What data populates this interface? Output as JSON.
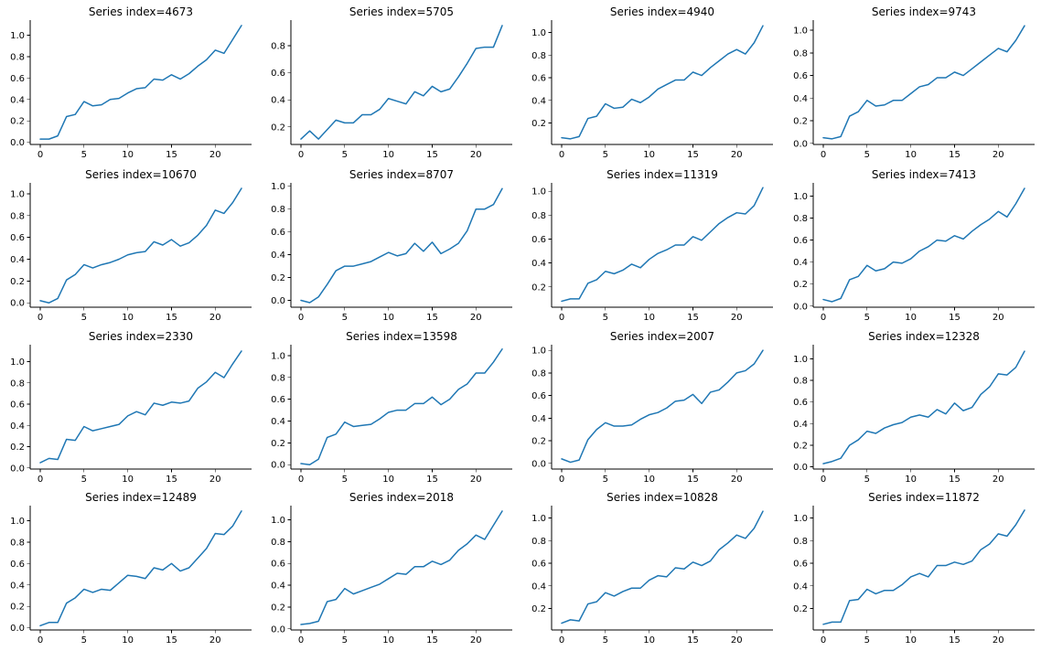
{
  "colors": {
    "line": "#1f77b4",
    "axis": "#000000",
    "background": "#ffffff"
  },
  "chart_data": [
    {
      "type": "line",
      "title": "Series index=4673",
      "xticks": [
        0,
        5,
        10,
        15,
        20
      ],
      "yticks": [
        "0.0",
        "0.2",
        "0.4",
        "0.6",
        "0.8",
        "1.0"
      ],
      "xlim": [
        -1.15,
        24.15
      ],
      "ylim": [
        -0.02,
        1.14
      ],
      "spines": [
        "left",
        "bottom"
      ],
      "x": [
        0,
        1,
        2,
        3,
        4,
        5,
        6,
        7,
        8,
        9,
        10,
        11,
        12,
        13,
        14,
        15,
        16,
        17,
        18,
        19,
        20,
        21,
        22,
        23
      ],
      "series": [
        {
          "values": [
            0.03,
            0.03,
            0.06,
            0.24,
            0.26,
            0.38,
            0.34,
            0.35,
            0.4,
            0.41,
            0.46,
            0.5,
            0.51,
            0.59,
            0.58,
            0.63,
            0.59,
            0.64,
            0.71,
            0.77,
            0.86,
            0.83,
            0.96,
            1.09
          ]
        }
      ]
    },
    {
      "type": "line",
      "title": "Series index=5705",
      "xticks": [
        0,
        5,
        10,
        15,
        20
      ],
      "yticks": [
        "0.2",
        "0.4",
        "0.6",
        "0.8"
      ],
      "xlim": [
        -1.15,
        24.15
      ],
      "ylim": [
        0.07,
        0.99
      ],
      "spines": [
        "left",
        "bottom"
      ],
      "x": [
        0,
        1,
        2,
        3,
        4,
        5,
        6,
        7,
        8,
        9,
        10,
        11,
        12,
        13,
        14,
        15,
        16,
        17,
        18,
        19,
        20,
        21,
        22,
        23
      ],
      "series": [
        {
          "values": [
            0.11,
            0.17,
            0.11,
            0.18,
            0.25,
            0.23,
            0.23,
            0.29,
            0.29,
            0.33,
            0.41,
            0.39,
            0.37,
            0.46,
            0.43,
            0.5,
            0.46,
            0.48,
            0.57,
            0.67,
            0.78,
            0.79,
            0.79,
            0.95
          ]
        }
      ]
    },
    {
      "type": "line",
      "title": "Series index=4940",
      "xticks": [
        0,
        5,
        10,
        15,
        20
      ],
      "yticks": [
        "0.2",
        "0.4",
        "0.6",
        "0.8",
        "1.0"
      ],
      "xlim": [
        -1.15,
        24.15
      ],
      "ylim": [
        0.01,
        1.11
      ],
      "spines": [
        "left",
        "bottom"
      ],
      "x": [
        0,
        1,
        2,
        3,
        4,
        5,
        6,
        7,
        8,
        9,
        10,
        11,
        12,
        13,
        14,
        15,
        16,
        17,
        18,
        19,
        20,
        21,
        22,
        23
      ],
      "series": [
        {
          "values": [
            0.07,
            0.06,
            0.08,
            0.24,
            0.26,
            0.37,
            0.33,
            0.34,
            0.41,
            0.38,
            0.43,
            0.5,
            0.54,
            0.58,
            0.58,
            0.65,
            0.62,
            0.69,
            0.75,
            0.81,
            0.85,
            0.81,
            0.91,
            1.06
          ]
        }
      ]
    },
    {
      "type": "line",
      "title": "Series index=9743",
      "xticks": [
        0,
        5,
        10,
        15,
        20
      ],
      "yticks": [
        "0.0",
        "0.2",
        "0.4",
        "0.6",
        "0.8",
        "1.0"
      ],
      "xlim": [
        -1.15,
        24.15
      ],
      "ylim": [
        -0.01,
        1.09
      ],
      "spines": [
        "left",
        "bottom"
      ],
      "x": [
        0,
        1,
        2,
        3,
        4,
        5,
        6,
        7,
        8,
        9,
        10,
        11,
        12,
        13,
        14,
        15,
        16,
        17,
        18,
        19,
        20,
        21,
        22,
        23
      ],
      "series": [
        {
          "values": [
            0.05,
            0.04,
            0.06,
            0.24,
            0.28,
            0.38,
            0.33,
            0.34,
            0.38,
            0.38,
            0.44,
            0.5,
            0.52,
            0.58,
            0.58,
            0.63,
            0.6,
            0.66,
            0.72,
            0.78,
            0.84,
            0.81,
            0.91,
            1.04
          ]
        }
      ]
    },
    {
      "type": "line",
      "title": "Series index=10670",
      "xticks": [
        0,
        5,
        10,
        15,
        20
      ],
      "yticks": [
        "0.0",
        "0.2",
        "0.4",
        "0.6",
        "0.8",
        "1.0"
      ],
      "xlim": [
        -1.15,
        24.15
      ],
      "ylim": [
        -0.04,
        1.1
      ],
      "spines": [
        "left",
        "bottom"
      ],
      "x": [
        0,
        1,
        2,
        3,
        4,
        5,
        6,
        7,
        8,
        9,
        10,
        11,
        12,
        13,
        14,
        15,
        16,
        17,
        18,
        19,
        20,
        21,
        22,
        23
      ],
      "series": [
        {
          "values": [
            0.02,
            0.0,
            0.04,
            0.21,
            0.26,
            0.35,
            0.32,
            0.35,
            0.37,
            0.4,
            0.44,
            0.46,
            0.47,
            0.56,
            0.53,
            0.58,
            0.52,
            0.55,
            0.62,
            0.71,
            0.85,
            0.82,
            0.92,
            1.05
          ]
        }
      ]
    },
    {
      "type": "line",
      "title": "Series index=8707",
      "xticks": [
        0,
        5,
        10,
        15,
        20
      ],
      "yticks": [
        "0.0",
        "0.2",
        "0.4",
        "0.6",
        "0.8",
        "1.0"
      ],
      "xlim": [
        -1.15,
        24.15
      ],
      "ylim": [
        -0.06,
        1.03
      ],
      "spines": [
        "left",
        "bottom"
      ],
      "x": [
        0,
        1,
        2,
        3,
        4,
        5,
        6,
        7,
        8,
        9,
        10,
        11,
        12,
        13,
        14,
        15,
        16,
        17,
        18,
        19,
        20,
        21,
        22,
        23
      ],
      "series": [
        {
          "values": [
            0.0,
            -0.02,
            0.03,
            0.14,
            0.26,
            0.3,
            0.3,
            0.32,
            0.34,
            0.38,
            0.42,
            0.39,
            0.41,
            0.5,
            0.43,
            0.51,
            0.41,
            0.45,
            0.5,
            0.61,
            0.8,
            0.8,
            0.84,
            0.98
          ]
        }
      ]
    },
    {
      "type": "line",
      "title": "Series index=11319",
      "xticks": [
        0,
        5,
        10,
        15,
        20
      ],
      "yticks": [
        "0.2",
        "0.4",
        "0.6",
        "0.8",
        "1.0"
      ],
      "xlim": [
        -1.15,
        24.15
      ],
      "ylim": [
        0.03,
        1.07
      ],
      "spines": [
        "left",
        "bottom"
      ],
      "x": [
        0,
        1,
        2,
        3,
        4,
        5,
        6,
        7,
        8,
        9,
        10,
        11,
        12,
        13,
        14,
        15,
        16,
        17,
        18,
        19,
        20,
        21,
        22,
        23
      ],
      "series": [
        {
          "values": [
            0.08,
            0.1,
            0.1,
            0.23,
            0.26,
            0.33,
            0.31,
            0.34,
            0.39,
            0.36,
            0.43,
            0.48,
            0.51,
            0.55,
            0.55,
            0.62,
            0.59,
            0.66,
            0.73,
            0.78,
            0.82,
            0.81,
            0.88,
            1.03
          ]
        }
      ]
    },
    {
      "type": "line",
      "title": "Series index=7413",
      "xticks": [
        0,
        5,
        10,
        15,
        20
      ],
      "yticks": [
        "0.0",
        "0.2",
        "0.4",
        "0.6",
        "0.8",
        "1.0"
      ],
      "xlim": [
        -1.15,
        24.15
      ],
      "ylim": [
        -0.01,
        1.12
      ],
      "spines": [
        "left",
        "bottom"
      ],
      "x": [
        0,
        1,
        2,
        3,
        4,
        5,
        6,
        7,
        8,
        9,
        10,
        11,
        12,
        13,
        14,
        15,
        16,
        17,
        18,
        19,
        20,
        21,
        22,
        23
      ],
      "series": [
        {
          "values": [
            0.06,
            0.04,
            0.07,
            0.24,
            0.27,
            0.37,
            0.32,
            0.34,
            0.4,
            0.39,
            0.43,
            0.5,
            0.54,
            0.6,
            0.59,
            0.64,
            0.61,
            0.68,
            0.74,
            0.79,
            0.86,
            0.81,
            0.93,
            1.07
          ]
        }
      ]
    },
    {
      "type": "line",
      "title": "Series index=2330",
      "xticks": [
        0,
        5,
        10,
        15,
        20
      ],
      "yticks": [
        "0.0",
        "0.2",
        "0.4",
        "0.6",
        "0.8",
        "1.0"
      ],
      "xlim": [
        -1.15,
        24.15
      ],
      "ylim": [
        -0.01,
        1.16
      ],
      "spines": [
        "left",
        "bottom"
      ],
      "x": [
        0,
        1,
        2,
        3,
        4,
        5,
        6,
        7,
        8,
        9,
        10,
        11,
        12,
        13,
        14,
        15,
        16,
        17,
        18,
        19,
        20,
        21,
        22,
        23
      ],
      "series": [
        {
          "values": [
            0.05,
            0.09,
            0.08,
            0.27,
            0.26,
            0.39,
            0.35,
            0.37,
            0.39,
            0.41,
            0.49,
            0.53,
            0.5,
            0.61,
            0.59,
            0.62,
            0.61,
            0.63,
            0.75,
            0.81,
            0.9,
            0.85,
            0.98,
            1.1
          ]
        }
      ]
    },
    {
      "type": "line",
      "title": "Series index=13598",
      "xticks": [
        0,
        5,
        10,
        15,
        20
      ],
      "yticks": [
        "0.0",
        "0.2",
        "0.4",
        "0.6",
        "0.8",
        "1.0"
      ],
      "xlim": [
        -1.15,
        24.15
      ],
      "ylim": [
        -0.04,
        1.1
      ],
      "spines": [
        "left",
        "bottom"
      ],
      "x": [
        0,
        1,
        2,
        3,
        4,
        5,
        6,
        7,
        8,
        9,
        10,
        11,
        12,
        13,
        14,
        15,
        16,
        17,
        18,
        19,
        20,
        21,
        22,
        23
      ],
      "series": [
        {
          "values": [
            0.01,
            0.0,
            0.05,
            0.25,
            0.28,
            0.39,
            0.35,
            0.36,
            0.37,
            0.42,
            0.48,
            0.5,
            0.5,
            0.56,
            0.56,
            0.62,
            0.55,
            0.6,
            0.69,
            0.74,
            0.84,
            0.84,
            0.94,
            1.06
          ]
        }
      ]
    },
    {
      "type": "line",
      "title": "Series index=2007",
      "xticks": [
        0,
        5,
        10,
        15,
        20
      ],
      "yticks": [
        "0.0",
        "0.2",
        "0.4",
        "0.6",
        "0.8",
        "1.0"
      ],
      "xlim": [
        -1.15,
        24.15
      ],
      "ylim": [
        -0.05,
        1.05
      ],
      "spines": [
        "left",
        "bottom"
      ],
      "x": [
        0,
        1,
        2,
        3,
        4,
        5,
        6,
        7,
        8,
        9,
        10,
        11,
        12,
        13,
        14,
        15,
        16,
        17,
        18,
        19,
        20,
        21,
        22,
        23
      ],
      "series": [
        {
          "values": [
            0.04,
            0.01,
            0.03,
            0.21,
            0.3,
            0.36,
            0.33,
            0.33,
            0.34,
            0.39,
            0.43,
            0.45,
            0.49,
            0.55,
            0.56,
            0.61,
            0.53,
            0.63,
            0.65,
            0.72,
            0.8,
            0.82,
            0.88,
            1.0
          ]
        }
      ]
    },
    {
      "type": "line",
      "title": "Series index=12328",
      "xticks": [
        0,
        5,
        10,
        15,
        20
      ],
      "yticks": [
        "0.0",
        "0.2",
        "0.4",
        "0.6",
        "0.8",
        "1.0"
      ],
      "xlim": [
        -1.15,
        24.15
      ],
      "ylim": [
        -0.02,
        1.13
      ],
      "spines": [
        "left",
        "bottom"
      ],
      "x": [
        0,
        1,
        2,
        3,
        4,
        5,
        6,
        7,
        8,
        9,
        10,
        11,
        12,
        13,
        14,
        15,
        16,
        17,
        18,
        19,
        20,
        21,
        22,
        23
      ],
      "series": [
        {
          "values": [
            0.03,
            0.05,
            0.08,
            0.2,
            0.25,
            0.33,
            0.31,
            0.36,
            0.39,
            0.41,
            0.46,
            0.48,
            0.46,
            0.53,
            0.49,
            0.59,
            0.52,
            0.55,
            0.67,
            0.74,
            0.86,
            0.85,
            0.92,
            1.07
          ]
        }
      ]
    },
    {
      "type": "line",
      "title": "Series index=12489",
      "xticks": [
        0,
        5,
        10,
        15,
        20
      ],
      "yticks": [
        "0.0",
        "0.2",
        "0.4",
        "0.6",
        "0.8",
        "1.0"
      ],
      "xlim": [
        -1.15,
        24.15
      ],
      "ylim": [
        -0.02,
        1.14
      ],
      "spines": [
        "left",
        "bottom"
      ],
      "x": [
        0,
        1,
        2,
        3,
        4,
        5,
        6,
        7,
        8,
        9,
        10,
        11,
        12,
        13,
        14,
        15,
        16,
        17,
        18,
        19,
        20,
        21,
        22,
        23
      ],
      "series": [
        {
          "values": [
            0.02,
            0.05,
            0.05,
            0.23,
            0.28,
            0.36,
            0.33,
            0.36,
            0.35,
            0.42,
            0.49,
            0.48,
            0.46,
            0.56,
            0.54,
            0.6,
            0.53,
            0.56,
            0.65,
            0.74,
            0.88,
            0.87,
            0.95,
            1.09
          ]
        }
      ]
    },
    {
      "type": "line",
      "title": "Series index=2018",
      "xticks": [
        0,
        5,
        10,
        15,
        20
      ],
      "yticks": [
        "0.0",
        "0.2",
        "0.4",
        "0.6",
        "0.8",
        "1.0"
      ],
      "xlim": [
        -1.15,
        24.15
      ],
      "ylim": [
        -0.01,
        1.13
      ],
      "spines": [
        "left",
        "bottom"
      ],
      "x": [
        0,
        1,
        2,
        3,
        4,
        5,
        6,
        7,
        8,
        9,
        10,
        11,
        12,
        13,
        14,
        15,
        16,
        17,
        18,
        19,
        20,
        21,
        22,
        23
      ],
      "series": [
        {
          "values": [
            0.04,
            0.05,
            0.07,
            0.25,
            0.27,
            0.37,
            0.32,
            0.35,
            0.38,
            0.41,
            0.46,
            0.51,
            0.5,
            0.57,
            0.57,
            0.62,
            0.59,
            0.63,
            0.72,
            0.78,
            0.86,
            0.82,
            0.95,
            1.08
          ]
        }
      ]
    },
    {
      "type": "line",
      "title": "Series index=10828",
      "xticks": [
        0,
        5,
        10,
        15,
        20
      ],
      "yticks": [
        "0.2",
        "0.4",
        "0.6",
        "0.8",
        "1.0"
      ],
      "xlim": [
        -1.15,
        24.15
      ],
      "ylim": [
        0.01,
        1.11
      ],
      "spines": [
        "left",
        "bottom"
      ],
      "x": [
        0,
        1,
        2,
        3,
        4,
        5,
        6,
        7,
        8,
        9,
        10,
        11,
        12,
        13,
        14,
        15,
        16,
        17,
        18,
        19,
        20,
        21,
        22,
        23
      ],
      "series": [
        {
          "values": [
            0.07,
            0.1,
            0.09,
            0.24,
            0.26,
            0.34,
            0.31,
            0.35,
            0.38,
            0.38,
            0.45,
            0.49,
            0.48,
            0.56,
            0.55,
            0.61,
            0.58,
            0.62,
            0.72,
            0.78,
            0.85,
            0.82,
            0.91,
            1.06
          ]
        }
      ]
    },
    {
      "type": "line",
      "title": "Series index=11872",
      "xticks": [
        0,
        5,
        10,
        15,
        20
      ],
      "yticks": [
        "0.2",
        "0.4",
        "0.6",
        "0.8",
        "1.0"
      ],
      "xlim": [
        -1.15,
        24.15
      ],
      "ylim": [
        0.01,
        1.11
      ],
      "spines": [
        "left",
        "bottom"
      ],
      "x": [
        0,
        1,
        2,
        3,
        4,
        5,
        6,
        7,
        8,
        9,
        10,
        11,
        12,
        13,
        14,
        15,
        16,
        17,
        18,
        19,
        20,
        21,
        22,
        23
      ],
      "series": [
        {
          "values": [
            0.06,
            0.08,
            0.08,
            0.27,
            0.28,
            0.37,
            0.33,
            0.36,
            0.36,
            0.41,
            0.48,
            0.51,
            0.48,
            0.58,
            0.58,
            0.61,
            0.59,
            0.62,
            0.72,
            0.77,
            0.86,
            0.84,
            0.94,
            1.07
          ]
        }
      ]
    }
  ]
}
